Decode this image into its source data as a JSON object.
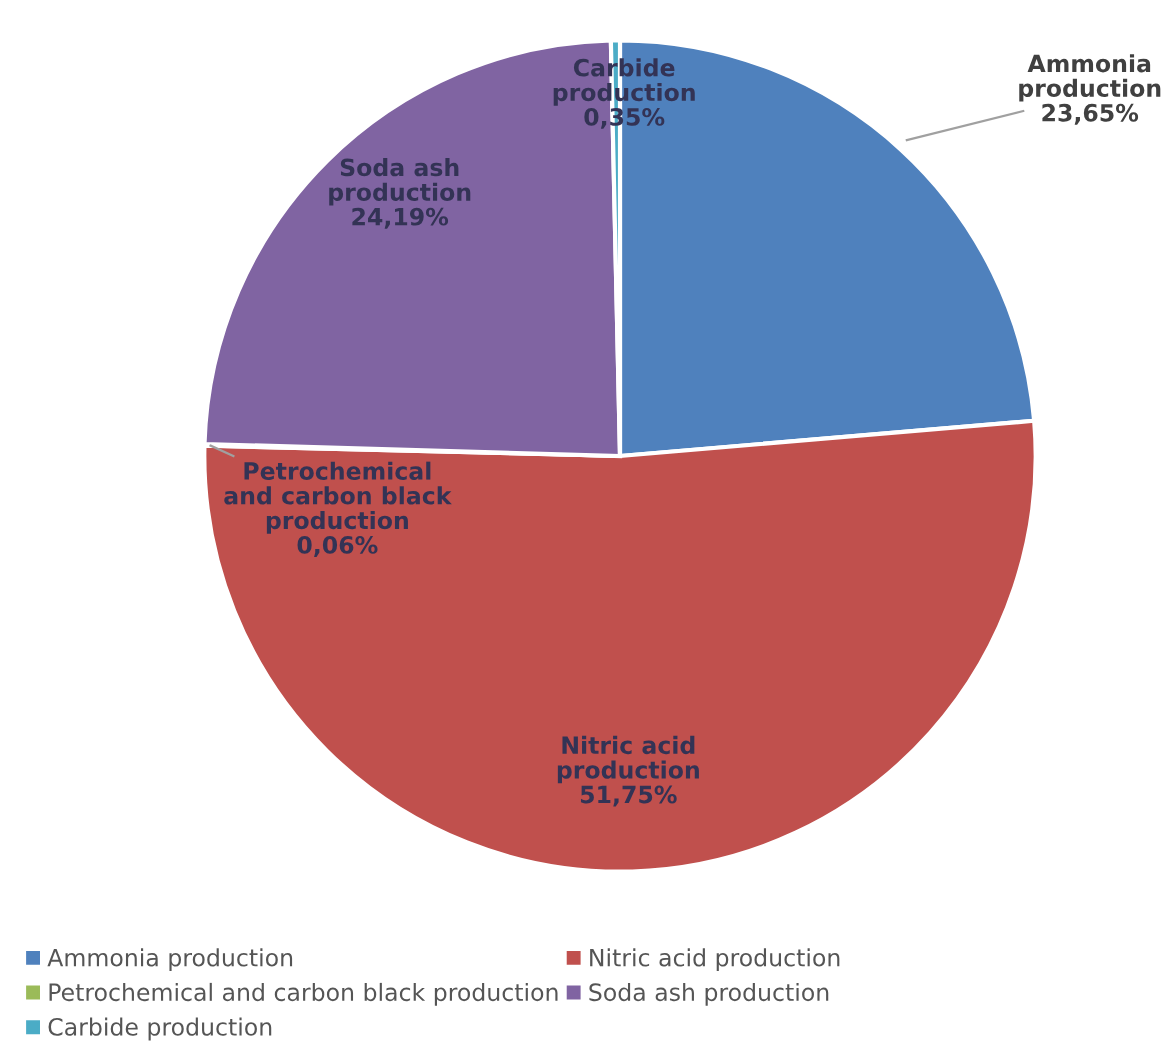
{
  "chart_data": {
    "type": "pie",
    "categories": [
      "Ammonia production",
      "Nitric acid production",
      "Petrochemical and carbon black production",
      "Soda ash production",
      "Carbide production"
    ],
    "values": [
      23.65,
      51.75,
      0.06,
      24.19,
      0.35
    ],
    "colors": [
      "#4f81bd",
      "#c0504d",
      "#9bbb59",
      "#8064a2",
      "#4bacc6"
    ],
    "value_labels": [
      "Ammonia\nproduction\n23,65%",
      "Nitric acid\nproduction\n51,75%",
      "Petrochemical\nand carbon black\nproduction\n0,06%",
      "Soda ash\nproduction\n24,19%",
      "Carbide\nproduction\n0,35%"
    ],
    "legend": "bottom"
  }
}
